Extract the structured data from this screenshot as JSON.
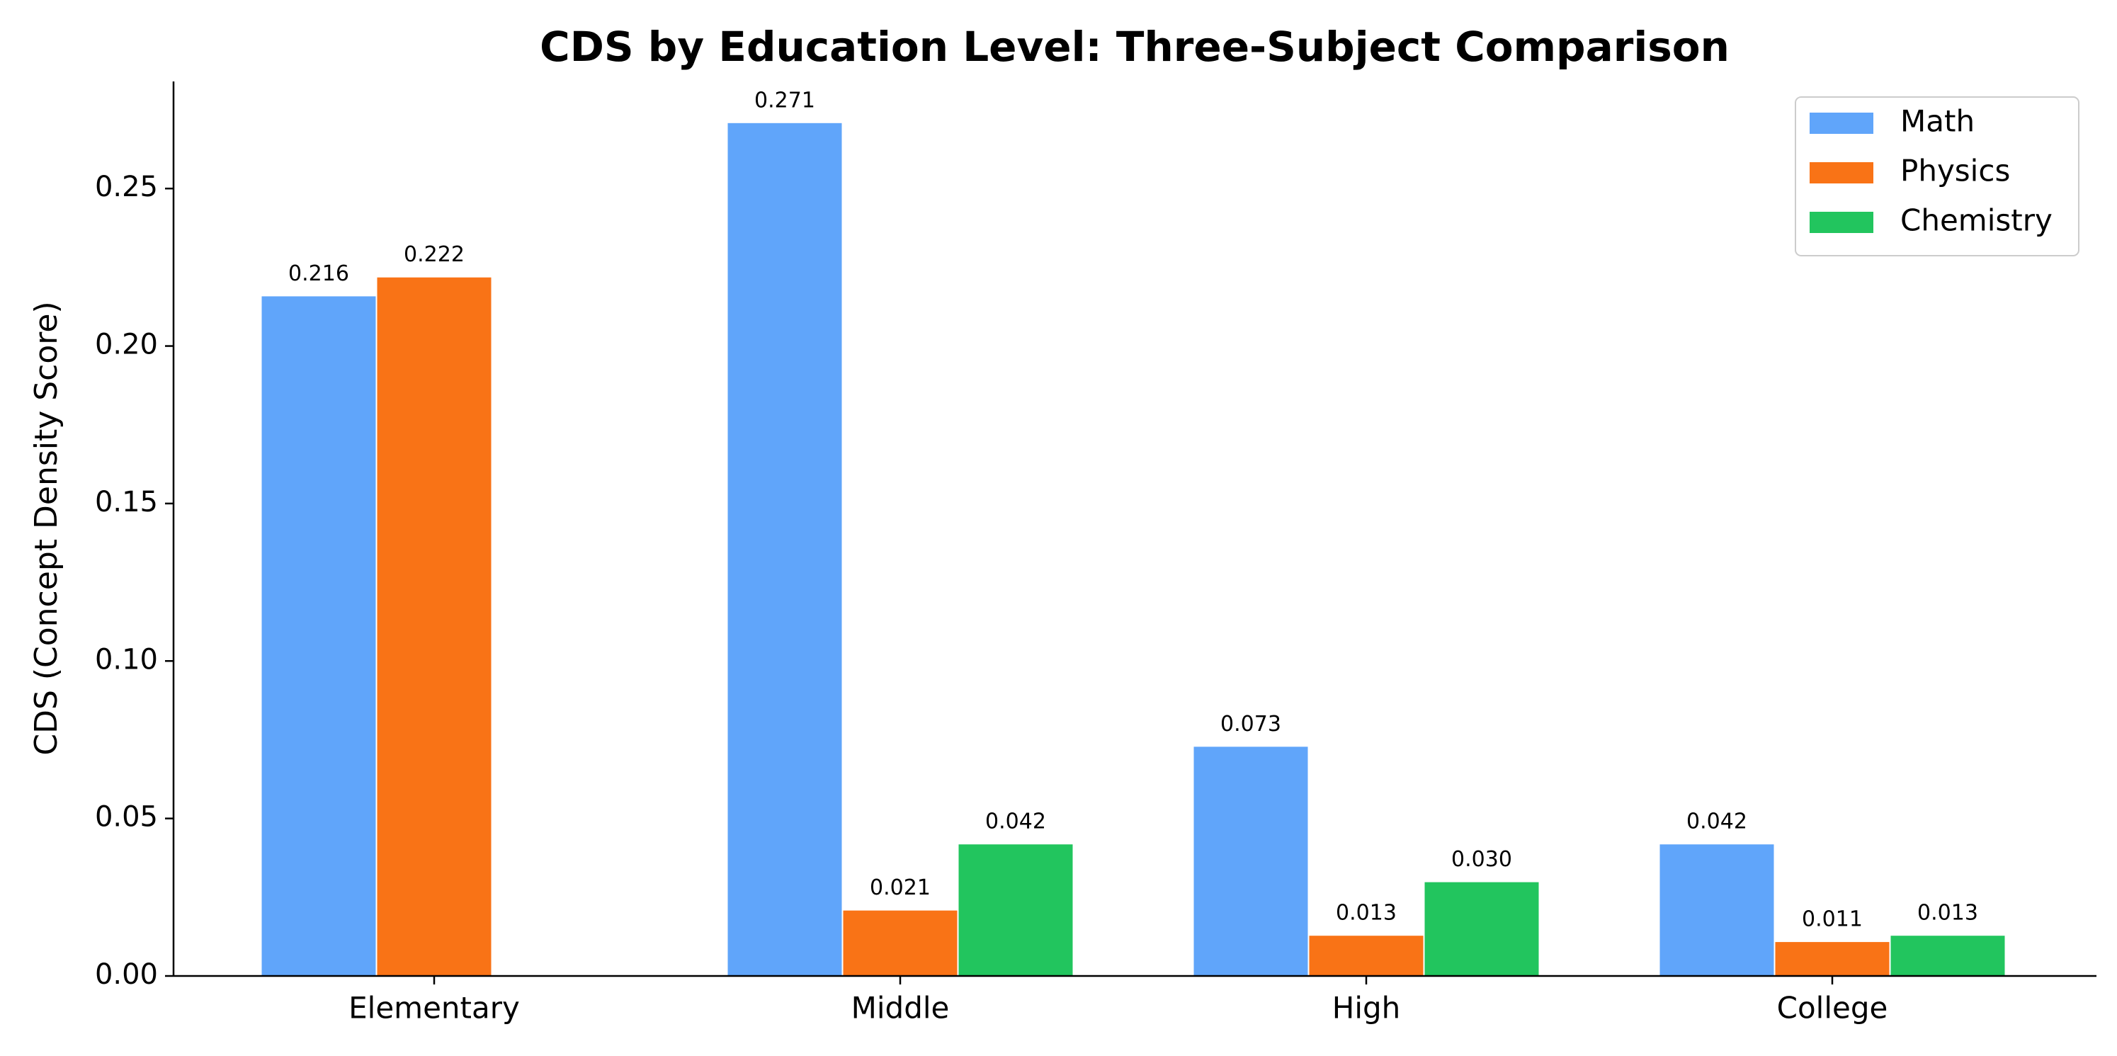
{
  "chart_data": {
    "type": "bar",
    "title": "CDS by Education Level: Three-Subject Comparison",
    "y_label": "CDS (Concept Density Score)",
    "categories": [
      "Elementary",
      "Middle",
      "High",
      "College"
    ],
    "series": [
      {
        "name": "Math",
        "color": "#60a5fa",
        "values": [
          0.216,
          0.271,
          0.073,
          0.042
        ],
        "value_labels": [
          "0.216",
          "0.271",
          "0.073",
          "0.042"
        ]
      },
      {
        "name": "Physics",
        "color": "#f97316",
        "values": [
          0.222,
          0.021,
          0.013,
          0.011
        ],
        "value_labels": [
          "0.222",
          "0.021",
          "0.013",
          "0.011"
        ]
      },
      {
        "name": "Chemistry",
        "color": "#22c55e",
        "values": [
          null,
          0.042,
          0.03,
          0.013
        ],
        "value_labels": [
          null,
          "0.042",
          "0.030",
          "0.013"
        ]
      }
    ],
    "ylim": [
      0,
      0.284
    ],
    "yticks": [
      {
        "value": 0,
        "label": "0.00"
      },
      {
        "value": 0.05,
        "label": "0.05"
      },
      {
        "value": 0.1,
        "label": "0.10"
      },
      {
        "value": 0.15,
        "label": "0.15"
      },
      {
        "value": 0.2,
        "label": "0.20"
      },
      {
        "value": 0.25,
        "label": "0.25"
      }
    ],
    "legend": "upper right",
    "grid": false
  }
}
